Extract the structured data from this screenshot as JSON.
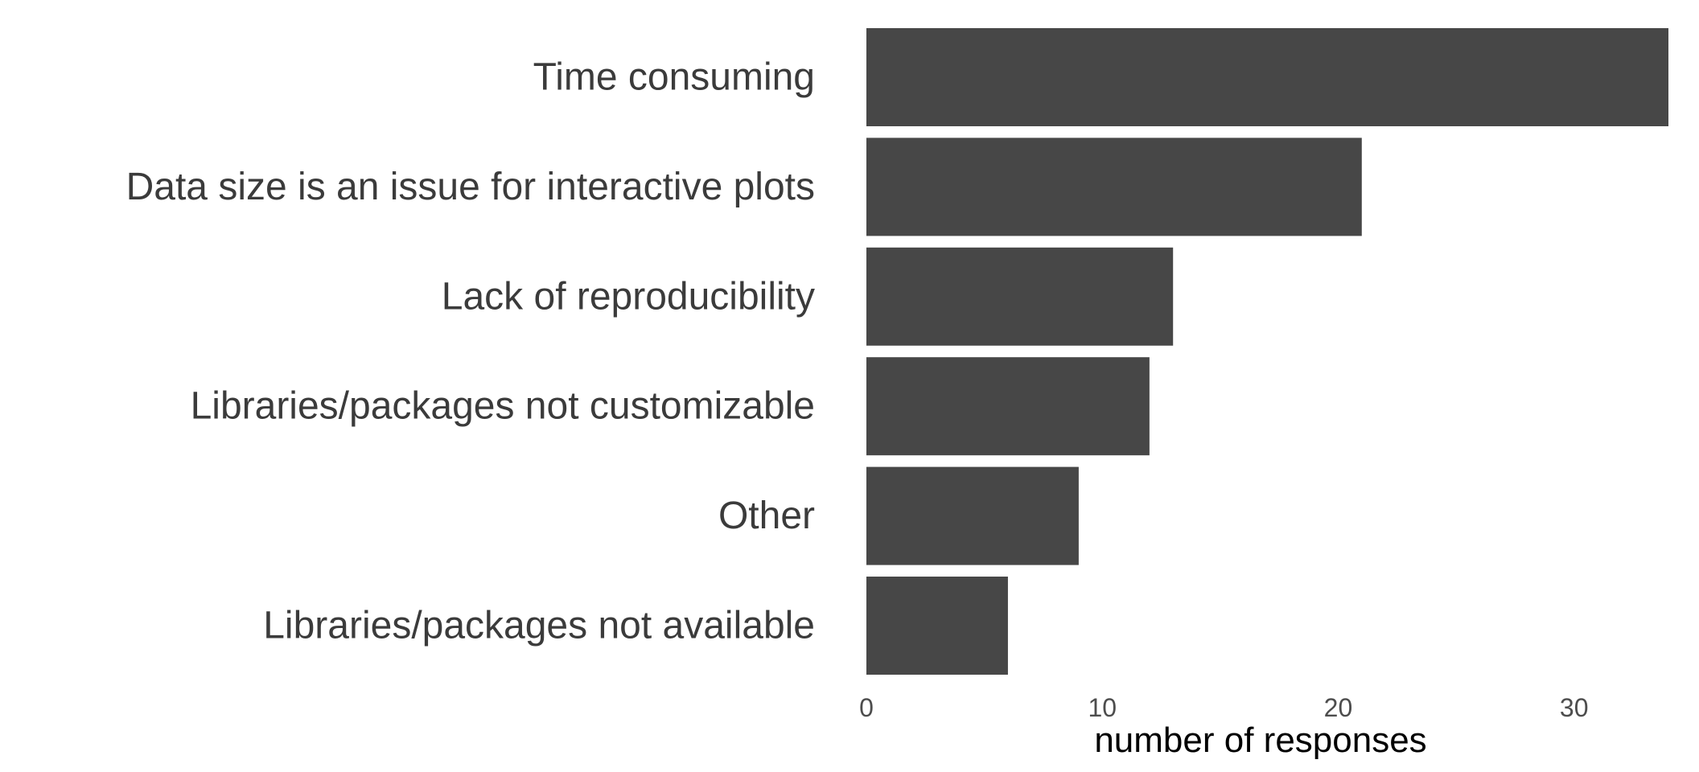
{
  "chart_data": {
    "type": "bar",
    "orientation": "horizontal",
    "categories": [
      "Time consuming",
      "Data size is an issue for interactive plots",
      "Lack of reproducibility",
      "Libraries/packages not customizable",
      "Other",
      "Libraries/packages not available"
    ],
    "values": [
      34,
      21,
      13,
      12,
      9,
      6
    ],
    "xlabel": "number of responses",
    "ylabel": "",
    "xlim": [
      0,
      34
    ],
    "xticks": [
      0,
      10,
      20,
      30
    ],
    "grid": false,
    "bar_color": "#474747"
  }
}
